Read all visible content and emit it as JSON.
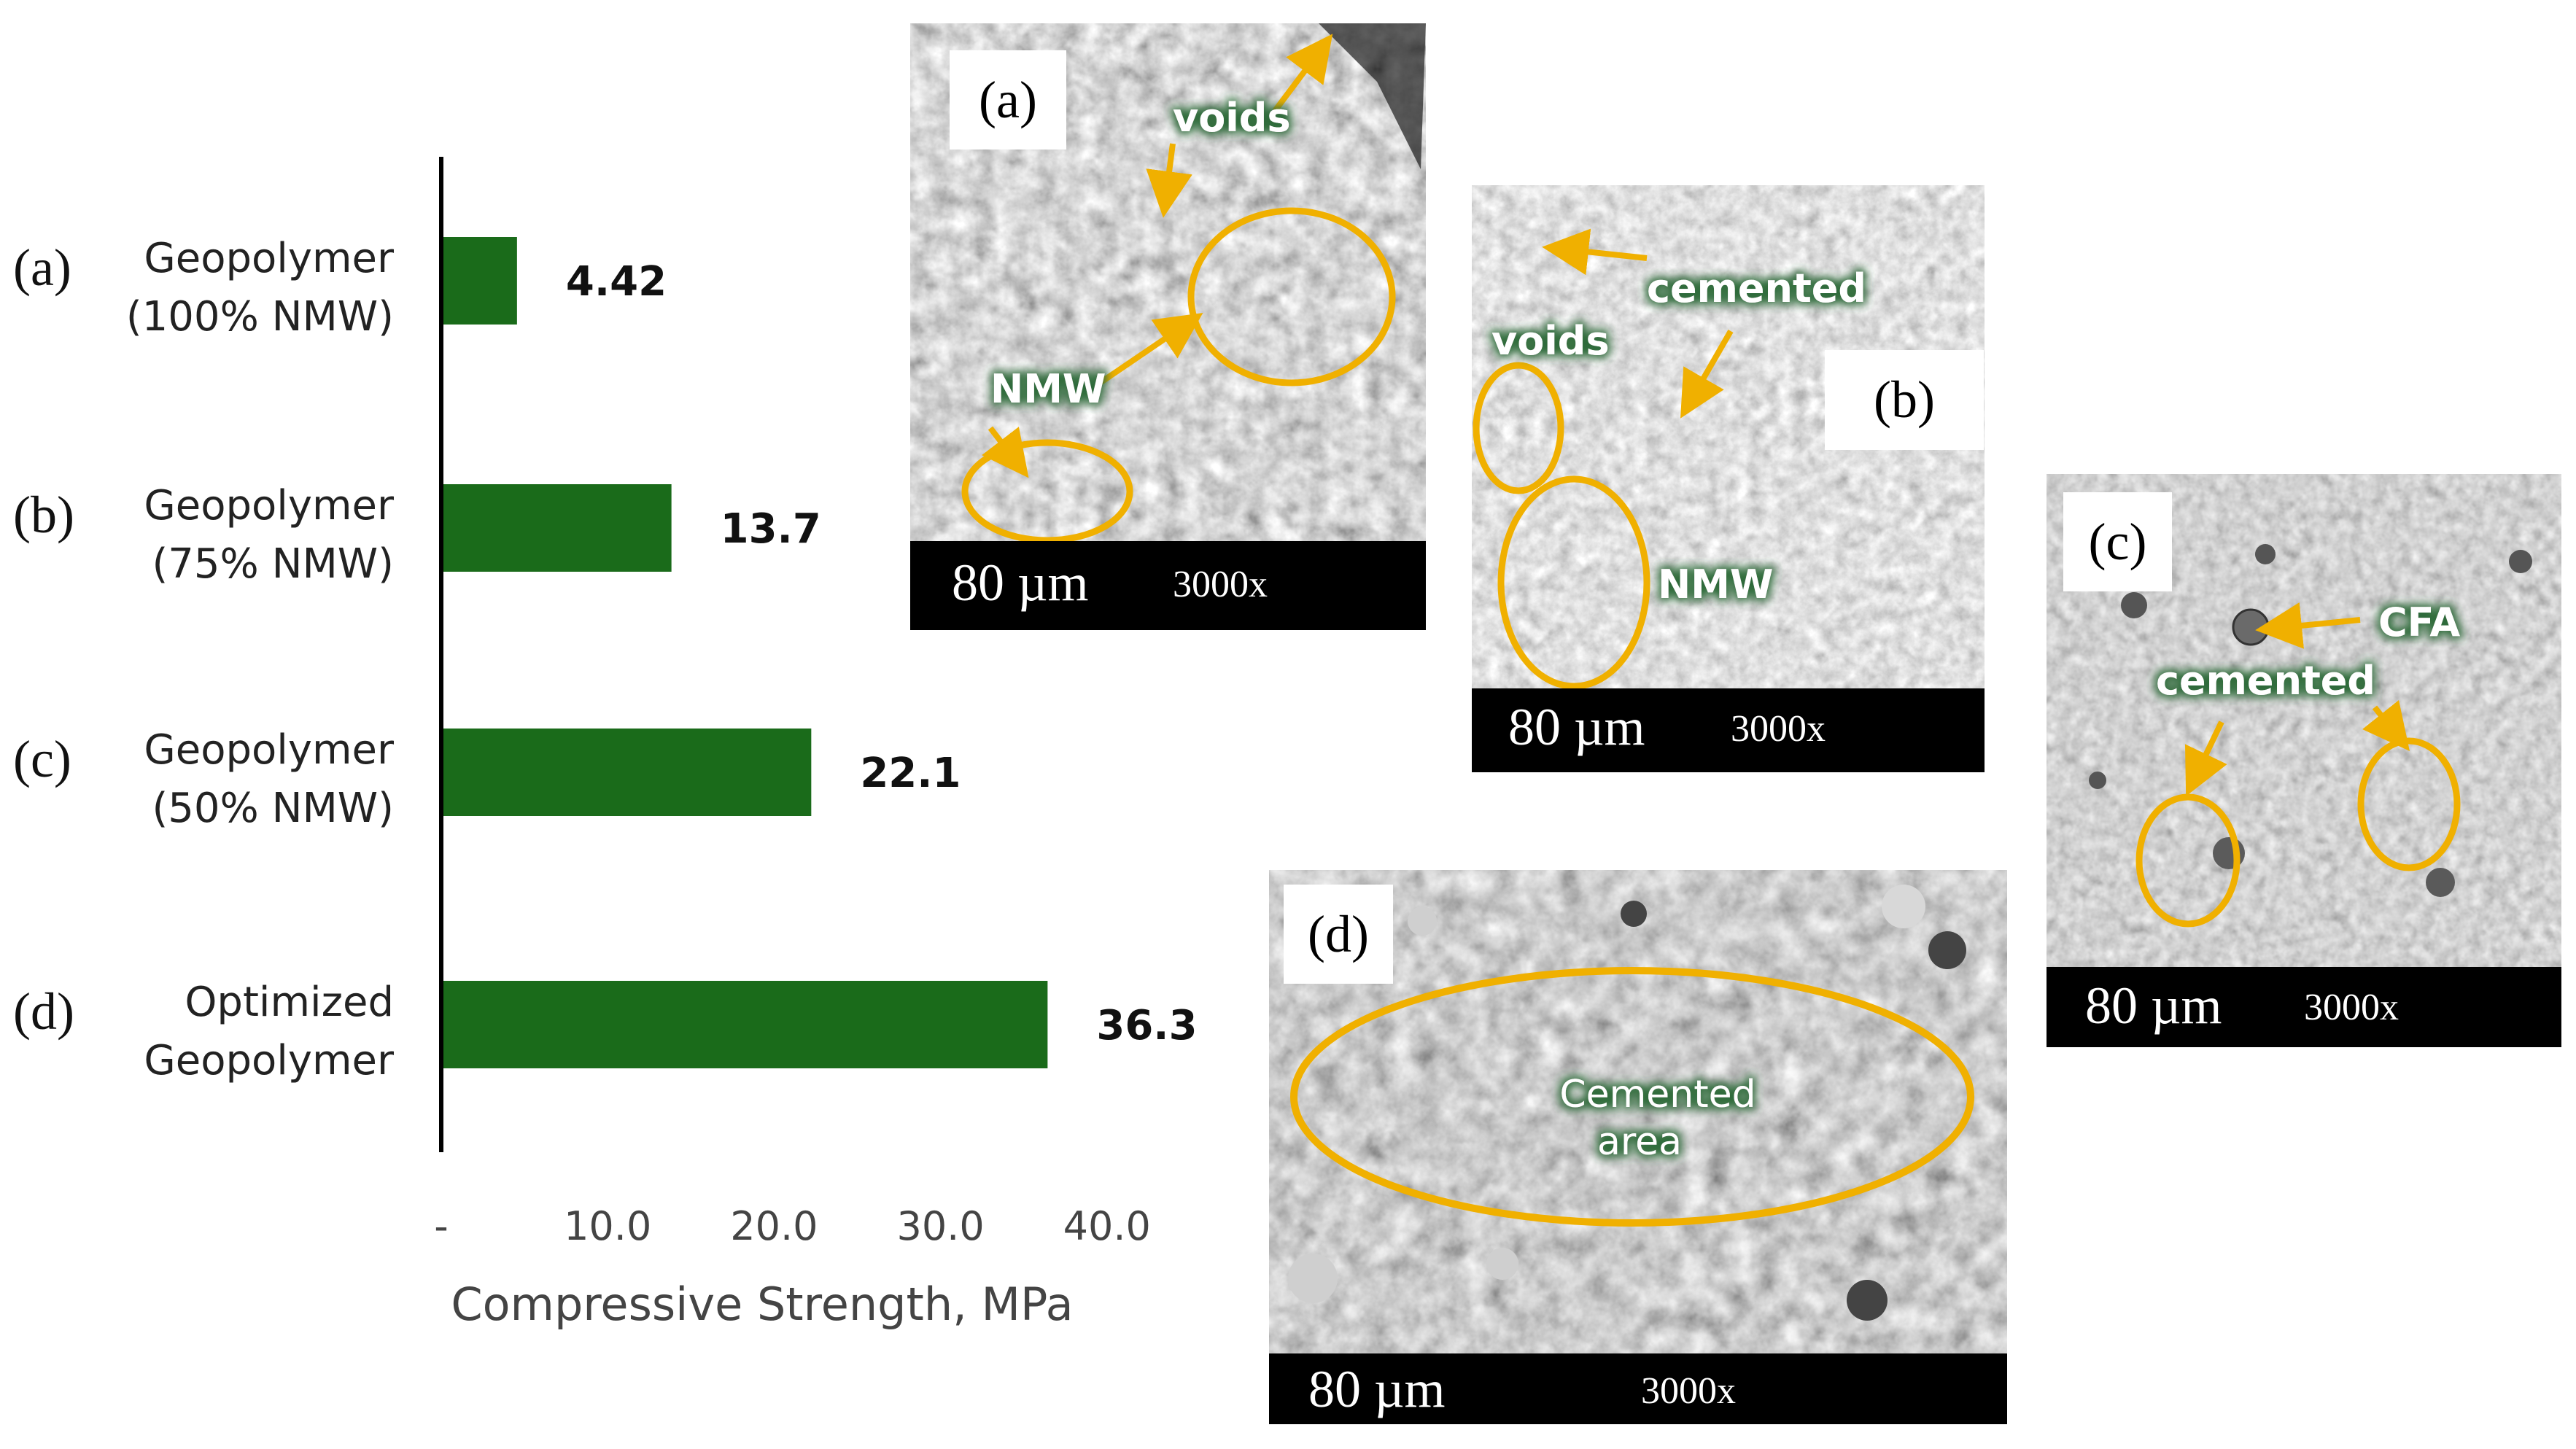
{
  "chart_data": {
    "type": "bar",
    "orientation": "horizontal",
    "categories": [
      [
        "(a)",
        "Geopolymer",
        "(100% NMW)"
      ],
      [
        "(b)",
        "Geopolymer",
        "(75% NMW)"
      ],
      [
        "(c)",
        "Geopolymer",
        "(50% NMW)"
      ],
      [
        "(d)",
        "Optimized",
        "Geopolymer"
      ]
    ],
    "values": [
      4.42,
      13.7,
      22.1,
      36.3
    ],
    "value_labels": [
      "4.42",
      "13.7",
      "22.1",
      "36.3"
    ],
    "xlabel": "Compressive Strength, MPa",
    "xlim": [
      0,
      40
    ],
    "xticks": [
      0,
      10,
      20,
      30,
      40
    ],
    "xtick_labels": [
      "-",
      "10.0",
      "20.0",
      "30.0",
      "40.0"
    ],
    "bar_color": "#1a6b1a",
    "grid": false
  },
  "panels": {
    "a": {
      "tag": "(a)",
      "scale": "80 µm",
      "mag": "3000x",
      "annotations": [
        "voids",
        "NMW"
      ]
    },
    "b": {
      "tag": "(b)",
      "scale": "80 µm",
      "mag": "3000x",
      "annotations": [
        "cemented",
        "voids",
        "NMW"
      ]
    },
    "c": {
      "tag": "(c)",
      "scale": "80 µm",
      "mag": "3000x",
      "annotations": [
        "CFA",
        "cemented"
      ]
    },
    "d": {
      "tag": "(d)",
      "scale": "80 µm",
      "mag": "3000x",
      "annotations": [
        "Cemented",
        "area"
      ]
    }
  },
  "colors": {
    "highlight": "#f0b000",
    "annotation_text": "#ffffff",
    "annotation_glow": "#2e6b3a"
  }
}
